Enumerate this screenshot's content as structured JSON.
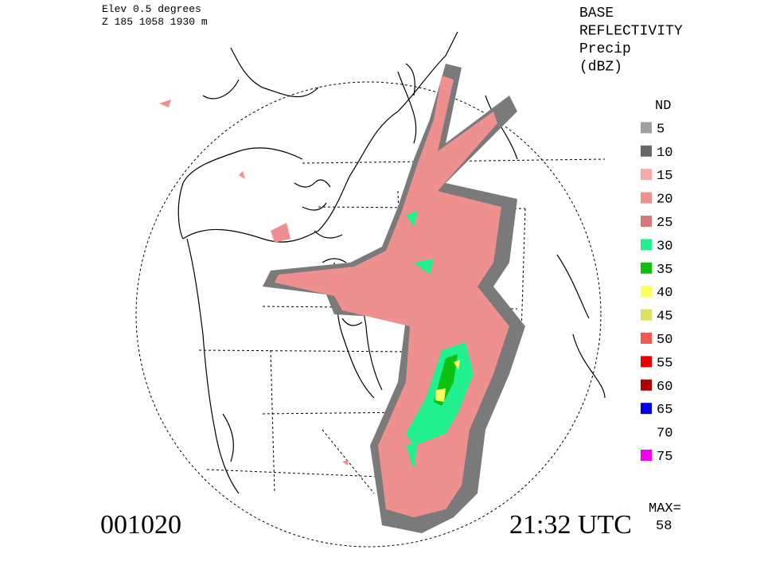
{
  "header": {
    "elevation": "Elev 0.5 degrees",
    "site": "Z 185 1058 1930 m"
  },
  "product": {
    "lines": [
      "BASE",
      "REFLECTIVITY",
      "Precip",
      "(dBZ)"
    ]
  },
  "legend": {
    "items": [
      {
        "label": "ND",
        "color": null
      },
      {
        "label": "5",
        "color": "#a0a0a0"
      },
      {
        "label": "10",
        "color": "#686868"
      },
      {
        "label": "15",
        "color": "#f7aaaa"
      },
      {
        "label": "20",
        "color": "#ef9090"
      },
      {
        "label": "25",
        "color": "#d77878"
      },
      {
        "label": "30",
        "color": "#20f090"
      },
      {
        "label": "35",
        "color": "#10c010"
      },
      {
        "label": "40",
        "color": "#ffff60"
      },
      {
        "label": "45",
        "color": "#e0e060"
      },
      {
        "label": "50",
        "color": "#f05858"
      },
      {
        "label": "55",
        "color": "#e80000"
      },
      {
        "label": "60",
        "color": "#b00000"
      },
      {
        "label": "65",
        "color": "#0000e8"
      },
      {
        "label": "70",
        "color": "#ffffff"
      },
      {
        "label": "75",
        "color": "#f000f0"
      }
    ]
  },
  "footer": {
    "date": "001020",
    "time": "21:32 UTC",
    "max_label": "MAX=",
    "max_value": "58"
  }
}
